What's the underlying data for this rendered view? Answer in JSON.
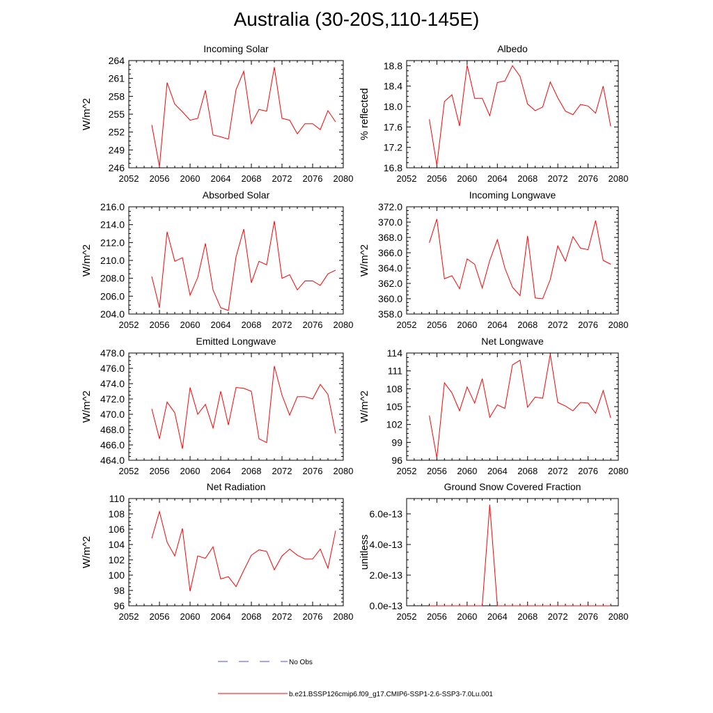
{
  "title": "Australia (30-20S,110-145E)",
  "colors": {
    "model": "#ff0000",
    "obs": "#4a4aff",
    "axis": "#000000"
  },
  "legend": {
    "obs_label": "No Obs",
    "model_label": "b.e21.BSSP126cmip6.f09_g17.CMIP6-SSP1-2.6-SSP3-7.0Lu.001"
  },
  "chart_data": [
    {
      "type": "line",
      "title": "Incoming Solar",
      "ylabel": "W/m^2",
      "xlim": [
        2052,
        2080
      ],
      "ylim": [
        246,
        264
      ],
      "xticks": [
        "2052",
        "2056",
        "2060",
        "2064",
        "2068",
        "2072",
        "2076",
        "2080"
      ],
      "yticks": [
        "246",
        "249",
        "252",
        "255",
        "258",
        "261",
        "264"
      ],
      "x": [
        2055,
        2056,
        2057,
        2058,
        2059,
        2060,
        2061,
        2062,
        2063,
        2064,
        2065,
        2066,
        2067,
        2068,
        2069,
        2070,
        2071,
        2072,
        2073,
        2074,
        2075,
        2076,
        2077,
        2078,
        2079
      ],
      "values": [
        253.2,
        246.2,
        260.3,
        256.7,
        255.4,
        254.0,
        254.3,
        259.0,
        251.5,
        251.2,
        250.8,
        259.1,
        262.2,
        253.4,
        255.8,
        255.5,
        262.9,
        254.3,
        254.0,
        251.7,
        253.4,
        253.4,
        252.4,
        255.6,
        253.7
      ]
    },
    {
      "type": "line",
      "title": "Albedo",
      "ylabel": "% reflected",
      "xlim": [
        2052,
        2080
      ],
      "ylim": [
        16.8,
        18.9
      ],
      "xticks": [
        "2052",
        "2056",
        "2060",
        "2064",
        "2068",
        "2072",
        "2076",
        "2080"
      ],
      "yticks": [
        "16.8",
        "17.2",
        "17.6",
        "18.0",
        "18.4",
        "18.8"
      ],
      "x": [
        2055,
        2056,
        2057,
        2058,
        2059,
        2060,
        2061,
        2062,
        2063,
        2064,
        2065,
        2066,
        2067,
        2068,
        2069,
        2070,
        2071,
        2072,
        2073,
        2074,
        2075,
        2076,
        2077,
        2078,
        2079
      ],
      "values": [
        17.75,
        16.85,
        18.1,
        18.23,
        17.62,
        18.81,
        18.16,
        18.16,
        17.82,
        18.47,
        18.5,
        18.8,
        18.59,
        18.05,
        17.92,
        17.99,
        18.48,
        18.17,
        17.91,
        17.84,
        18.04,
        18.01,
        17.87,
        18.4,
        17.61
      ]
    },
    {
      "type": "line",
      "title": "Absorbed Solar",
      "ylabel": "W/m^2",
      "xlim": [
        2052,
        2080
      ],
      "ylim": [
        204,
        216
      ],
      "xticks": [
        "2052",
        "2056",
        "2060",
        "2064",
        "2068",
        "2072",
        "2076",
        "2080"
      ],
      "yticks": [
        "204.0",
        "206.0",
        "208.0",
        "210.0",
        "212.0",
        "214.0",
        "216.0"
      ],
      "x": [
        2055,
        2056,
        2057,
        2058,
        2059,
        2060,
        2061,
        2062,
        2063,
        2064,
        2065,
        2066,
        2067,
        2068,
        2069,
        2070,
        2071,
        2072,
        2073,
        2074,
        2075,
        2076,
        2077,
        2078,
        2079
      ],
      "values": [
        208.2,
        204.7,
        213.2,
        209.9,
        210.3,
        206.1,
        208.1,
        211.9,
        206.7,
        204.7,
        204.4,
        210.4,
        213.5,
        207.5,
        209.9,
        209.5,
        214.4,
        208.0,
        208.4,
        206.7,
        207.7,
        207.7,
        207.2,
        208.5,
        208.9
      ]
    },
    {
      "type": "line",
      "title": "Incoming Longwave",
      "ylabel": "W/m^2",
      "xlim": [
        2052,
        2080
      ],
      "ylim": [
        358,
        372
      ],
      "xticks": [
        "2052",
        "2056",
        "2060",
        "2064",
        "2068",
        "2072",
        "2076",
        "2080"
      ],
      "yticks": [
        "358.0",
        "360.0",
        "362.0",
        "364.0",
        "366.0",
        "368.0",
        "370.0",
        "372.0"
      ],
      "x": [
        2055,
        2056,
        2057,
        2058,
        2059,
        2060,
        2061,
        2062,
        2063,
        2064,
        2065,
        2066,
        2067,
        2068,
        2069,
        2070,
        2071,
        2072,
        2073,
        2074,
        2075,
        2076,
        2077,
        2078,
        2079
      ],
      "values": [
        367.3,
        370.4,
        362.6,
        363.0,
        361.3,
        365.2,
        364.5,
        361.4,
        365.0,
        367.7,
        364.0,
        361.5,
        360.4,
        368.2,
        360.1,
        360.0,
        362.5,
        366.9,
        364.9,
        368.1,
        366.6,
        366.4,
        370.2,
        365.0,
        364.5
      ]
    },
    {
      "type": "line",
      "title": "Emitted Longwave",
      "ylabel": "W/m^2",
      "xlim": [
        2052,
        2080
      ],
      "ylim": [
        464,
        478
      ],
      "xticks": [
        "2052",
        "2056",
        "2060",
        "2064",
        "2068",
        "2072",
        "2076",
        "2080"
      ],
      "yticks": [
        "464.0",
        "466.0",
        "468.0",
        "470.0",
        "472.0",
        "474.0",
        "476.0",
        "478.0"
      ],
      "x": [
        2055,
        2056,
        2057,
        2058,
        2059,
        2060,
        2061,
        2062,
        2063,
        2064,
        2065,
        2066,
        2067,
        2068,
        2069,
        2070,
        2071,
        2072,
        2073,
        2074,
        2075,
        2076,
        2077,
        2078,
        2079
      ],
      "values": [
        470.7,
        466.8,
        471.6,
        470.2,
        465.5,
        473.5,
        470.0,
        471.3,
        468.2,
        473.0,
        468.6,
        473.5,
        473.4,
        473.0,
        466.8,
        466.3,
        476.3,
        472.5,
        469.9,
        472.3,
        472.3,
        472.0,
        473.9,
        472.6,
        467.5
      ]
    },
    {
      "type": "line",
      "title": "Net Longwave",
      "ylabel": "W/m^2",
      "xlim": [
        2052,
        2080
      ],
      "ylim": [
        96,
        114
      ],
      "xticks": [
        "2052",
        "2056",
        "2060",
        "2064",
        "2068",
        "2072",
        "2076",
        "2080"
      ],
      "yticks": [
        "96",
        "99",
        "102",
        "105",
        "108",
        "111",
        "114"
      ],
      "x": [
        2055,
        2056,
        2057,
        2058,
        2059,
        2060,
        2061,
        2062,
        2063,
        2064,
        2065,
        2066,
        2067,
        2068,
        2069,
        2070,
        2071,
        2072,
        2073,
        2074,
        2075,
        2076,
        2077,
        2078,
        2079
      ],
      "values": [
        103.5,
        96.4,
        109.0,
        107.3,
        104.3,
        108.3,
        105.6,
        109.7,
        103.2,
        105.3,
        104.7,
        112.0,
        112.8,
        104.9,
        106.6,
        106.4,
        113.8,
        105.7,
        105.1,
        104.3,
        105.7,
        105.6,
        103.9,
        107.7,
        103.1
      ]
    },
    {
      "type": "line",
      "title": "Net Radiation",
      "ylabel": "W/m^2",
      "xlim": [
        2052,
        2080
      ],
      "ylim": [
        96,
        110
      ],
      "xticks": [
        "2052",
        "2056",
        "2060",
        "2064",
        "2068",
        "2072",
        "2076",
        "2080"
      ],
      "yticks": [
        "96",
        "98",
        "100",
        "102",
        "104",
        "106",
        "108",
        "110"
      ],
      "x": [
        2055,
        2056,
        2057,
        2058,
        2059,
        2060,
        2061,
        2062,
        2063,
        2064,
        2065,
        2066,
        2067,
        2068,
        2069,
        2070,
        2071,
        2072,
        2073,
        2074,
        2075,
        2076,
        2077,
        2078,
        2079
      ],
      "values": [
        104.8,
        108.3,
        104.3,
        102.5,
        106.1,
        97.9,
        102.5,
        102.2,
        103.7,
        99.5,
        99.8,
        98.5,
        100.6,
        102.6,
        103.3,
        103.1,
        100.7,
        102.5,
        103.4,
        102.6,
        102.1,
        102.1,
        103.4,
        100.9,
        105.8
      ]
    },
    {
      "type": "line",
      "title": "Ground Snow Covered Fraction",
      "ylabel": "unitless",
      "xlim": [
        2052,
        2080
      ],
      "ylim": [
        0,
        7e-13
      ],
      "xticks": [
        "2052",
        "2056",
        "2060",
        "2064",
        "2068",
        "2072",
        "2076",
        "2080"
      ],
      "yticks": [
        "0.0e-13",
        "2.0e-13",
        "4.0e-13",
        "6.0e-13"
      ],
      "x": [
        2055,
        2056,
        2057,
        2058,
        2059,
        2060,
        2061,
        2062,
        2063,
        2064,
        2065,
        2066,
        2067,
        2068,
        2069,
        2070,
        2071,
        2072,
        2073,
        2074,
        2075,
        2076,
        2077,
        2078,
        2079
      ],
      "values": [
        0,
        0,
        0,
        0,
        0,
        0,
        0,
        0,
        6.6e-13,
        0,
        0,
        0,
        0,
        0,
        0,
        0,
        0,
        0,
        0,
        0,
        0,
        0,
        0,
        0,
        0
      ]
    }
  ]
}
